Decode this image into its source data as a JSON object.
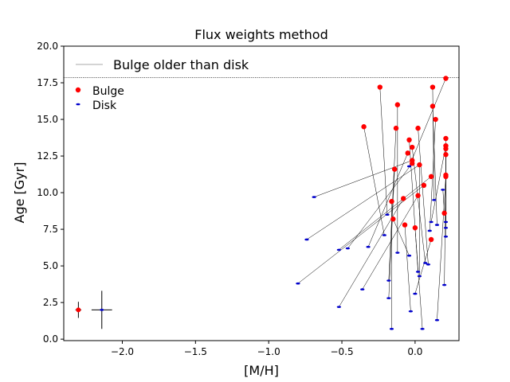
{
  "chart_data": {
    "type": "scatter",
    "title": "Flux weights method",
    "xlabel": "[M/H]",
    "ylabel": "Age [Gyr]",
    "xlim": [
      -2.4,
      0.3
    ],
    "ylim": [
      -0.1,
      20.0
    ],
    "xticks": [
      -2.0,
      -1.5,
      -1.0,
      -0.5,
      0.0
    ],
    "xtick_labels": [
      "−2.0",
      "−1.5",
      "−1.0",
      "−0.5",
      "0.0"
    ],
    "yticks": [
      0.0,
      2.5,
      5.0,
      7.5,
      10.0,
      12.5,
      15.0,
      17.5,
      20.0
    ],
    "ytick_labels": [
      "0.0",
      "2.5",
      "5.0",
      "7.5",
      "10.0",
      "12.5",
      "15.0",
      "17.5",
      "20.0"
    ],
    "grid": false,
    "legend_placement": "upper-left",
    "legend_line_label": "Bulge older than disk",
    "legend_bulge_label": "Bulge",
    "legend_disk_label": "Disk",
    "colors": {
      "bulge": "#ff0000",
      "disk": "#0000cc",
      "connector": "#000000",
      "legend_line": "#bbbbbb"
    },
    "reference_line_y": 17.85,
    "series": [
      {
        "name": "Bulge",
        "points": [
          [
            -0.35,
            14.5
          ],
          [
            -0.24,
            17.2
          ],
          [
            -0.12,
            16.0
          ],
          [
            -0.13,
            14.4
          ],
          [
            -0.04,
            13.6
          ],
          [
            -0.02,
            13.1
          ],
          [
            0.02,
            14.4
          ],
          [
            0.12,
            17.2
          ],
          [
            0.12,
            15.9
          ],
          [
            0.14,
            15.0
          ],
          [
            0.21,
            17.8
          ],
          [
            0.21,
            13.7
          ],
          [
            0.21,
            13.2
          ],
          [
            0.21,
            13.0
          ],
          [
            0.21,
            12.6
          ],
          [
            0.21,
            11.2
          ],
          [
            0.21,
            11.1
          ],
          [
            -0.05,
            12.7
          ],
          [
            -0.02,
            12.2
          ],
          [
            -0.02,
            12.0
          ],
          [
            0.03,
            11.9
          ],
          [
            0.11,
            11.1
          ],
          [
            -0.14,
            11.6
          ],
          [
            0.06,
            10.5
          ],
          [
            0.02,
            9.8
          ],
          [
            -0.08,
            9.6
          ],
          [
            -0.16,
            9.4
          ],
          [
            0.2,
            8.6
          ],
          [
            -0.15,
            8.2
          ],
          [
            -0.07,
            7.8
          ],
          [
            0.0,
            7.6
          ],
          [
            0.11,
            6.8
          ]
        ]
      },
      {
        "name": "Disk",
        "points": [
          [
            -0.69,
            9.7
          ],
          [
            -0.74,
            6.8
          ],
          [
            -0.8,
            3.8
          ],
          [
            -0.52,
            6.1
          ],
          [
            -0.46,
            6.2
          ],
          [
            -0.52,
            2.2
          ],
          [
            -0.36,
            3.4
          ],
          [
            -0.32,
            6.3
          ],
          [
            -0.21,
            7.1
          ],
          [
            -0.19,
            8.5
          ],
          [
            -0.18,
            4.0
          ],
          [
            -0.18,
            2.8
          ],
          [
            -0.16,
            0.7
          ],
          [
            -0.12,
            5.9
          ],
          [
            -0.04,
            11.8
          ],
          [
            -0.04,
            5.7
          ],
          [
            -0.03,
            1.9
          ],
          [
            0.0,
            3.1
          ],
          [
            0.02,
            4.6
          ],
          [
            0.03,
            4.3
          ],
          [
            0.05,
            0.7
          ],
          [
            0.07,
            5.2
          ],
          [
            0.09,
            5.1
          ],
          [
            0.1,
            7.4
          ],
          [
            0.11,
            8.0
          ],
          [
            0.13,
            9.5
          ],
          [
            0.15,
            7.8
          ],
          [
            0.15,
            1.3
          ],
          [
            0.19,
            10.2
          ],
          [
            0.2,
            3.7
          ],
          [
            0.21,
            7.0
          ],
          [
            0.21,
            7.6
          ],
          [
            0.21,
            8.0
          ]
        ]
      }
    ],
    "connections": [
      [
        -0.35,
        14.5,
        -0.21,
        7.1
      ],
      [
        -0.24,
        17.2,
        -0.19,
        8.5
      ],
      [
        -0.12,
        16.0,
        -0.12,
        5.9
      ],
      [
        -0.13,
        14.4,
        -0.18,
        4.0
      ],
      [
        -0.04,
        13.6,
        0.02,
        4.6
      ],
      [
        -0.02,
        13.1,
        0.07,
        5.2
      ],
      [
        0.02,
        14.4,
        0.09,
        5.1
      ],
      [
        0.12,
        17.2,
        0.13,
        9.5
      ],
      [
        0.12,
        15.9,
        0.15,
        7.8
      ],
      [
        0.14,
        15.0,
        0.1,
        7.4
      ],
      [
        0.21,
        17.8,
        -0.04,
        11.8
      ],
      [
        0.21,
        13.7,
        0.21,
        7.6
      ],
      [
        0.21,
        13.2,
        0.11,
        8.0
      ],
      [
        0.21,
        13.0,
        0.21,
        8.0
      ],
      [
        0.21,
        12.6,
        0.21,
        7.0
      ],
      [
        0.21,
        11.2,
        0.2,
        3.7
      ],
      [
        0.21,
        11.1,
        0.15,
        1.3
      ],
      [
        -0.05,
        12.7,
        -0.32,
        6.3
      ],
      [
        -0.02,
        12.2,
        -0.69,
        9.7
      ],
      [
        -0.02,
        12.0,
        -0.46,
        6.2
      ],
      [
        0.03,
        11.9,
        -0.74,
        6.8
      ],
      [
        0.11,
        11.1,
        -0.52,
        6.1
      ],
      [
        -0.14,
        11.6,
        -0.18,
        2.8
      ],
      [
        0.06,
        10.5,
        -0.8,
        3.8
      ],
      [
        0.02,
        9.8,
        -0.36,
        3.4
      ],
      [
        -0.08,
        9.6,
        -0.52,
        2.2
      ],
      [
        -0.16,
        9.4,
        -0.16,
        0.7
      ],
      [
        0.2,
        8.6,
        0.19,
        10.2
      ],
      [
        -0.15,
        8.2,
        -0.04,
        5.7
      ],
      [
        -0.07,
        7.8,
        -0.03,
        1.9
      ],
      [
        0.0,
        7.6,
        0.05,
        0.7
      ],
      [
        0.11,
        6.8,
        0.0,
        3.1
      ],
      [
        0.03,
        11.9,
        0.03,
        4.3
      ]
    ],
    "error_bars": [
      {
        "series": "Bulge",
        "x": -2.3,
        "y": 2.0,
        "xerr": 0.02,
        "yerr": 0.55
      },
      {
        "series": "Disk",
        "x": -2.14,
        "y": 2.0,
        "xerr": 0.07,
        "yerr": 1.3
      }
    ]
  }
}
